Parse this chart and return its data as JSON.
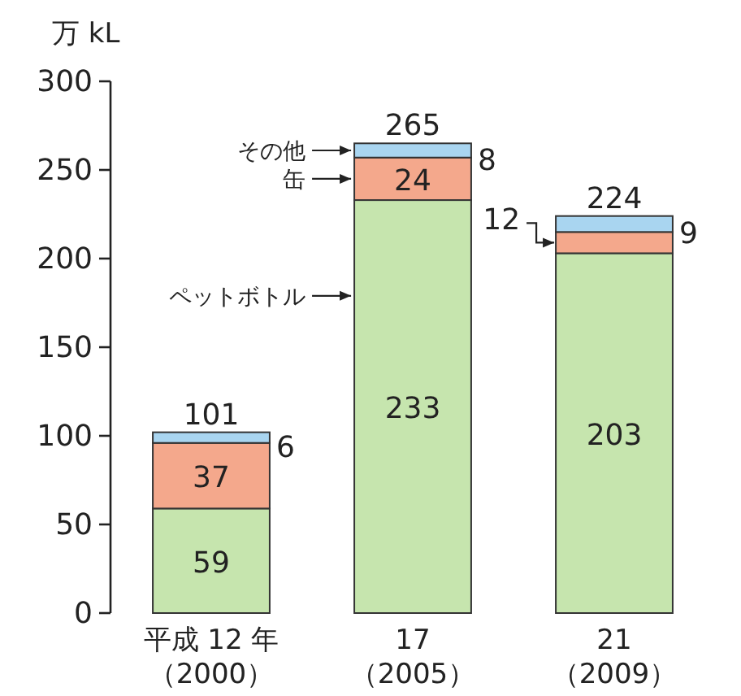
{
  "chart_data": {
    "type": "bar",
    "stacked": true,
    "ylabel": "万 kL",
    "categories": [
      "平成 12 年（2000）",
      "17（2005）",
      "21（2009）"
    ],
    "series": [
      {
        "name": "ペットボトル",
        "color": "#c6e5ae",
        "values": [
          59,
          233,
          203
        ]
      },
      {
        "name": "缶",
        "color": "#f4a88c",
        "values": [
          37,
          24,
          12
        ]
      },
      {
        "name": "その他",
        "color": "#a9d5f0",
        "values": [
          6,
          8,
          9
        ]
      }
    ],
    "totals": [
      "101",
      "265",
      "224"
    ],
    "data_labels": true,
    "ylim": [
      0,
      300
    ],
    "yticks": [
      0,
      50,
      100,
      150,
      200,
      250,
      300
    ]
  }
}
